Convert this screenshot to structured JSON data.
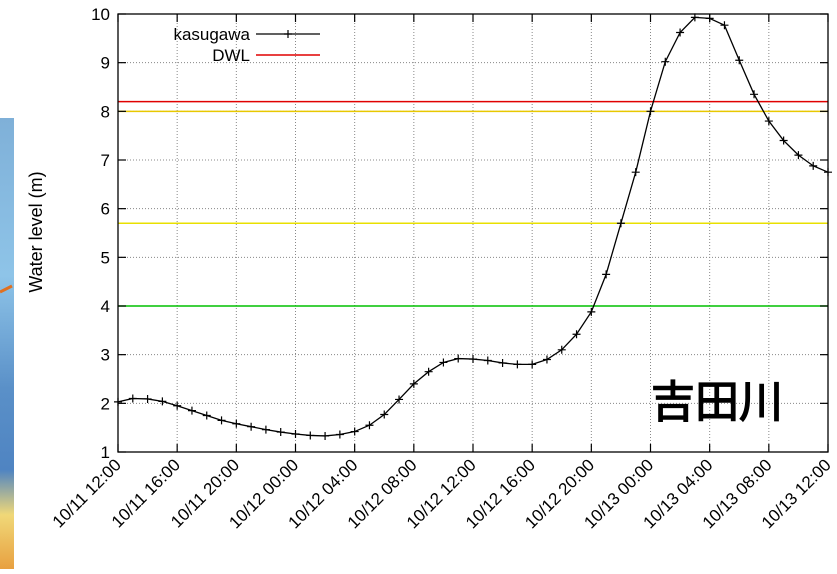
{
  "chart_data": {
    "type": "line",
    "title": "",
    "xlabel": "",
    "ylabel": "Water level (m)",
    "ylim": [
      1,
      10
    ],
    "xlim": [
      "10/11 12:00",
      "10/13 12:00"
    ],
    "yticks": [
      1,
      2,
      3,
      4,
      5,
      6,
      7,
      8,
      9,
      10
    ],
    "xticks": [
      "10/11 12:00",
      "10/11 16:00",
      "10/11 20:00",
      "10/12 00:00",
      "10/12 04:00",
      "10/12 08:00",
      "10/12 12:00",
      "10/12 16:00",
      "10/12 20:00",
      "10/13 00:00",
      "10/13 04:00",
      "10/13 08:00",
      "10/13 12:00"
    ],
    "grid": true,
    "legend_position": "top-left",
    "series": [
      {
        "name": "kasugawa",
        "color": "#000000",
        "marker": "plus",
        "x": [
          "10/11 12:00",
          "10/11 13:00",
          "10/11 14:00",
          "10/11 15:00",
          "10/11 16:00",
          "10/11 17:00",
          "10/11 18:00",
          "10/11 19:00",
          "10/11 20:00",
          "10/11 21:00",
          "10/11 22:00",
          "10/11 23:00",
          "10/12 00:00",
          "10/12 01:00",
          "10/12 02:00",
          "10/12 03:00",
          "10/12 04:00",
          "10/12 05:00",
          "10/12 06:00",
          "10/12 07:00",
          "10/12 08:00",
          "10/12 09:00",
          "10/12 10:00",
          "10/12 11:00",
          "10/12 12:00",
          "10/12 13:00",
          "10/12 14:00",
          "10/12 15:00",
          "10/12 16:00",
          "10/12 17:00",
          "10/12 18:00",
          "10/12 19:00",
          "10/12 20:00",
          "10/12 21:00",
          "10/12 22:00",
          "10/12 23:00",
          "10/13 00:00",
          "10/13 01:00",
          "10/13 02:00",
          "10/13 03:00",
          "10/13 04:00",
          "10/13 05:00",
          "10/13 06:00",
          "10/13 07:00",
          "10/13 08:00",
          "10/13 09:00",
          "10/13 10:00",
          "10/13 11:00",
          "10/13 12:00"
        ],
        "values": [
          2.03,
          2.1,
          2.09,
          2.04,
          1.95,
          1.85,
          1.75,
          1.65,
          1.58,
          1.52,
          1.46,
          1.41,
          1.37,
          1.34,
          1.33,
          1.36,
          1.42,
          1.55,
          1.77,
          2.08,
          2.4,
          2.65,
          2.84,
          2.92,
          2.91,
          2.88,
          2.83,
          2.8,
          2.8,
          2.9,
          3.1,
          3.42,
          3.88,
          4.65,
          5.7,
          6.75,
          8.0,
          9.02,
          9.62,
          9.93,
          9.91,
          9.77,
          9.05,
          8.35,
          7.8,
          7.4,
          7.1,
          6.88,
          6.75
        ]
      },
      {
        "name": "DWL",
        "color": "#e00000",
        "level": 8.2
      }
    ],
    "reference_lines": [
      {
        "level": 8.0,
        "color": "#e8c800"
      },
      {
        "level": 5.7,
        "color": "#e8e000"
      },
      {
        "level": 4.0,
        "color": "#00c000"
      }
    ],
    "annotations": [
      {
        "text": "吉田川"
      }
    ]
  }
}
